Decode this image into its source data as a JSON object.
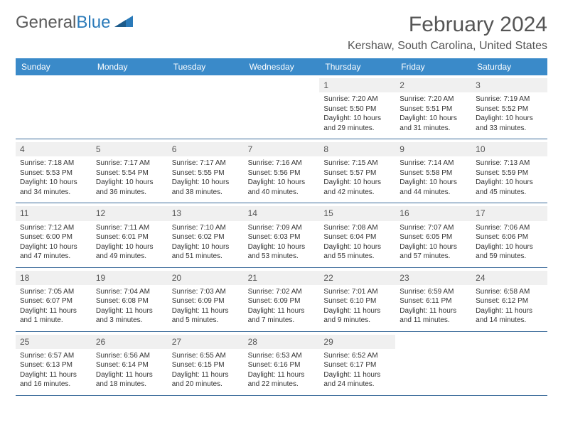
{
  "logo": {
    "part1": "General",
    "part2": "Blue"
  },
  "title": "February 2024",
  "subtitle": "Kershaw, South Carolina, United States",
  "colors": {
    "header_bg": "#3a8ac9",
    "row_border": "#3a6a9a",
    "daynum_bg": "#f0f0f0",
    "logo_blue": "#2a7ab9"
  },
  "day_names": [
    "Sunday",
    "Monday",
    "Tuesday",
    "Wednesday",
    "Thursday",
    "Friday",
    "Saturday"
  ],
  "weeks": [
    [
      null,
      null,
      null,
      null,
      {
        "n": "1",
        "sr": "Sunrise: 7:20 AM",
        "ss": "Sunset: 5:50 PM",
        "dl": "Daylight: 10 hours and 29 minutes."
      },
      {
        "n": "2",
        "sr": "Sunrise: 7:20 AM",
        "ss": "Sunset: 5:51 PM",
        "dl": "Daylight: 10 hours and 31 minutes."
      },
      {
        "n": "3",
        "sr": "Sunrise: 7:19 AM",
        "ss": "Sunset: 5:52 PM",
        "dl": "Daylight: 10 hours and 33 minutes."
      }
    ],
    [
      {
        "n": "4",
        "sr": "Sunrise: 7:18 AM",
        "ss": "Sunset: 5:53 PM",
        "dl": "Daylight: 10 hours and 34 minutes."
      },
      {
        "n": "5",
        "sr": "Sunrise: 7:17 AM",
        "ss": "Sunset: 5:54 PM",
        "dl": "Daylight: 10 hours and 36 minutes."
      },
      {
        "n": "6",
        "sr": "Sunrise: 7:17 AM",
        "ss": "Sunset: 5:55 PM",
        "dl": "Daylight: 10 hours and 38 minutes."
      },
      {
        "n": "7",
        "sr": "Sunrise: 7:16 AM",
        "ss": "Sunset: 5:56 PM",
        "dl": "Daylight: 10 hours and 40 minutes."
      },
      {
        "n": "8",
        "sr": "Sunrise: 7:15 AM",
        "ss": "Sunset: 5:57 PM",
        "dl": "Daylight: 10 hours and 42 minutes."
      },
      {
        "n": "9",
        "sr": "Sunrise: 7:14 AM",
        "ss": "Sunset: 5:58 PM",
        "dl": "Daylight: 10 hours and 44 minutes."
      },
      {
        "n": "10",
        "sr": "Sunrise: 7:13 AM",
        "ss": "Sunset: 5:59 PM",
        "dl": "Daylight: 10 hours and 45 minutes."
      }
    ],
    [
      {
        "n": "11",
        "sr": "Sunrise: 7:12 AM",
        "ss": "Sunset: 6:00 PM",
        "dl": "Daylight: 10 hours and 47 minutes."
      },
      {
        "n": "12",
        "sr": "Sunrise: 7:11 AM",
        "ss": "Sunset: 6:01 PM",
        "dl": "Daylight: 10 hours and 49 minutes."
      },
      {
        "n": "13",
        "sr": "Sunrise: 7:10 AM",
        "ss": "Sunset: 6:02 PM",
        "dl": "Daylight: 10 hours and 51 minutes."
      },
      {
        "n": "14",
        "sr": "Sunrise: 7:09 AM",
        "ss": "Sunset: 6:03 PM",
        "dl": "Daylight: 10 hours and 53 minutes."
      },
      {
        "n": "15",
        "sr": "Sunrise: 7:08 AM",
        "ss": "Sunset: 6:04 PM",
        "dl": "Daylight: 10 hours and 55 minutes."
      },
      {
        "n": "16",
        "sr": "Sunrise: 7:07 AM",
        "ss": "Sunset: 6:05 PM",
        "dl": "Daylight: 10 hours and 57 minutes."
      },
      {
        "n": "17",
        "sr": "Sunrise: 7:06 AM",
        "ss": "Sunset: 6:06 PM",
        "dl": "Daylight: 10 hours and 59 minutes."
      }
    ],
    [
      {
        "n": "18",
        "sr": "Sunrise: 7:05 AM",
        "ss": "Sunset: 6:07 PM",
        "dl": "Daylight: 11 hours and 1 minute."
      },
      {
        "n": "19",
        "sr": "Sunrise: 7:04 AM",
        "ss": "Sunset: 6:08 PM",
        "dl": "Daylight: 11 hours and 3 minutes."
      },
      {
        "n": "20",
        "sr": "Sunrise: 7:03 AM",
        "ss": "Sunset: 6:09 PM",
        "dl": "Daylight: 11 hours and 5 minutes."
      },
      {
        "n": "21",
        "sr": "Sunrise: 7:02 AM",
        "ss": "Sunset: 6:09 PM",
        "dl": "Daylight: 11 hours and 7 minutes."
      },
      {
        "n": "22",
        "sr": "Sunrise: 7:01 AM",
        "ss": "Sunset: 6:10 PM",
        "dl": "Daylight: 11 hours and 9 minutes."
      },
      {
        "n": "23",
        "sr": "Sunrise: 6:59 AM",
        "ss": "Sunset: 6:11 PM",
        "dl": "Daylight: 11 hours and 11 minutes."
      },
      {
        "n": "24",
        "sr": "Sunrise: 6:58 AM",
        "ss": "Sunset: 6:12 PM",
        "dl": "Daylight: 11 hours and 14 minutes."
      }
    ],
    [
      {
        "n": "25",
        "sr": "Sunrise: 6:57 AM",
        "ss": "Sunset: 6:13 PM",
        "dl": "Daylight: 11 hours and 16 minutes."
      },
      {
        "n": "26",
        "sr": "Sunrise: 6:56 AM",
        "ss": "Sunset: 6:14 PM",
        "dl": "Daylight: 11 hours and 18 minutes."
      },
      {
        "n": "27",
        "sr": "Sunrise: 6:55 AM",
        "ss": "Sunset: 6:15 PM",
        "dl": "Daylight: 11 hours and 20 minutes."
      },
      {
        "n": "28",
        "sr": "Sunrise: 6:53 AM",
        "ss": "Sunset: 6:16 PM",
        "dl": "Daylight: 11 hours and 22 minutes."
      },
      {
        "n": "29",
        "sr": "Sunrise: 6:52 AM",
        "ss": "Sunset: 6:17 PM",
        "dl": "Daylight: 11 hours and 24 minutes."
      },
      null,
      null
    ]
  ]
}
